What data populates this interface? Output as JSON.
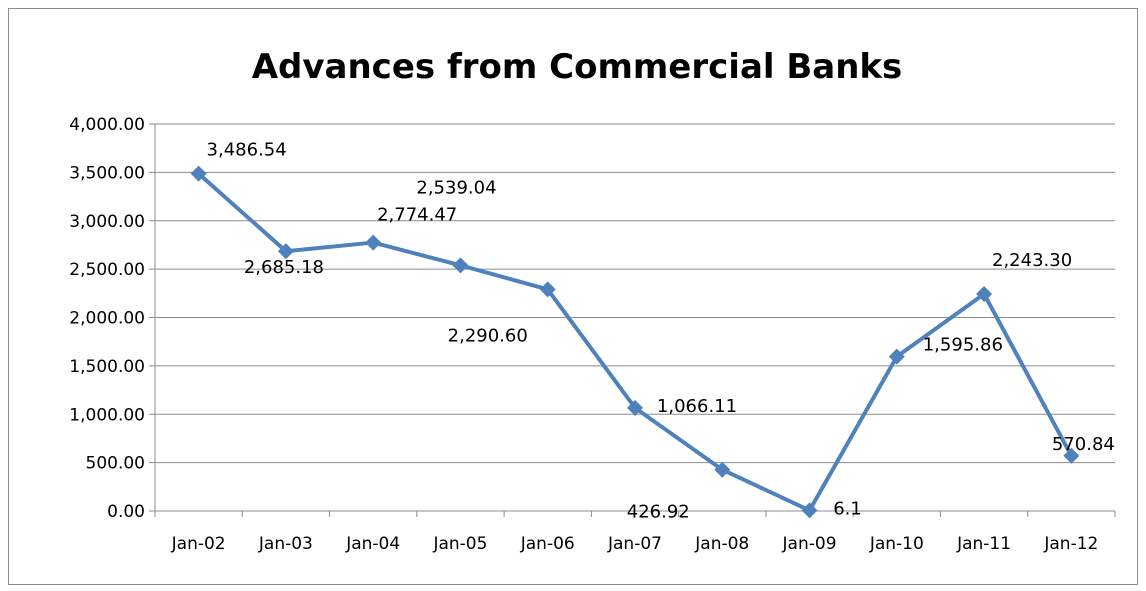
{
  "chart_data": {
    "type": "line",
    "title": "Advances from Commercial Banks",
    "xlabel": "",
    "ylabel": "",
    "categories": [
      "Jan-02",
      "Jan-03",
      "Jan-04",
      "Jan-05",
      "Jan-06",
      "Jan-07",
      "Jan-08",
      "Jan-09",
      "Jan-10",
      "Jan-11",
      "Jan-12"
    ],
    "series": [
      {
        "values": [
          3486.54,
          2685.18,
          2774.47,
          2539.04,
          2290.6,
          1066.11,
          426.92,
          6.1,
          1595.86,
          2243.3,
          570.84
        ],
        "labels": [
          "3,486.54",
          "2,685.18",
          "2,774.47",
          "2,539.04",
          "2,290.60",
          "1,066.11",
          "426.92",
          "6.1",
          "1,595.86",
          "2,243.30",
          "570.84"
        ]
      }
    ],
    "ylim": [
      0,
      4000
    ],
    "yticks": [
      0,
      500,
      1000,
      1500,
      2000,
      2500,
      3000,
      3500,
      4000
    ],
    "ytick_labels": [
      "0.00",
      "500.00",
      "1,000.00",
      "1,500.00",
      "2,000.00",
      "2,500.00",
      "3,000.00",
      "3,500.00",
      "4,000.00"
    ],
    "grid": true,
    "legend": "none",
    "colors": {
      "line": "#4f81bd",
      "gridline": "#8c8c8c",
      "axis": "#8c8c8c"
    }
  }
}
